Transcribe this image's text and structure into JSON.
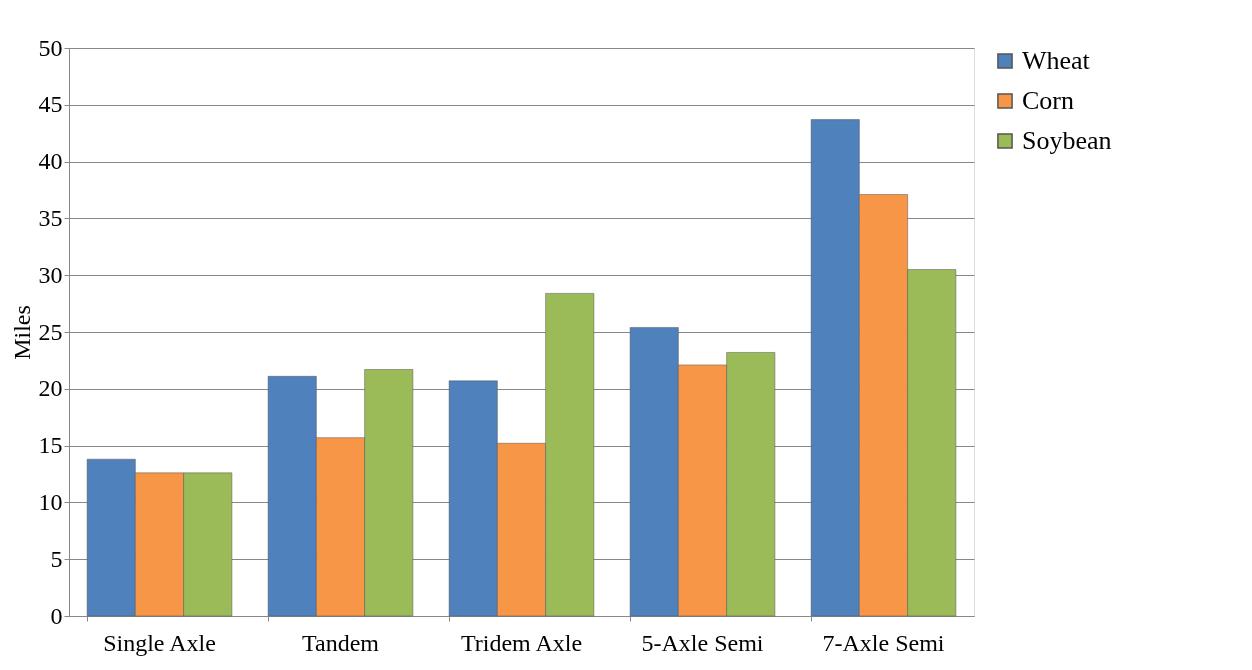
{
  "chart_data": {
    "type": "bar",
    "ylabel": "Miles",
    "categories": [
      "Single Axle",
      "Tandem",
      "Tridem Axle",
      "5-Axle Semi",
      "7-Axle Semi"
    ],
    "series": [
      {
        "name": "Wheat",
        "color": "#4f81bd",
        "values": [
          13.8,
          21.1,
          20.7,
          25.4,
          43.7
        ]
      },
      {
        "name": "Corn",
        "color": "#f79646",
        "values": [
          12.6,
          15.7,
          15.2,
          22.1,
          37.1
        ]
      },
      {
        "name": "Soybean",
        "color": "#9bbb59",
        "values": [
          12.6,
          21.7,
          28.4,
          23.2,
          30.5
        ]
      }
    ],
    "ylim": [
      0,
      50
    ],
    "yticks": [
      0,
      5,
      10,
      15,
      20,
      25,
      30,
      35,
      40,
      45,
      50
    ],
    "grid": "y",
    "legend": "right"
  }
}
